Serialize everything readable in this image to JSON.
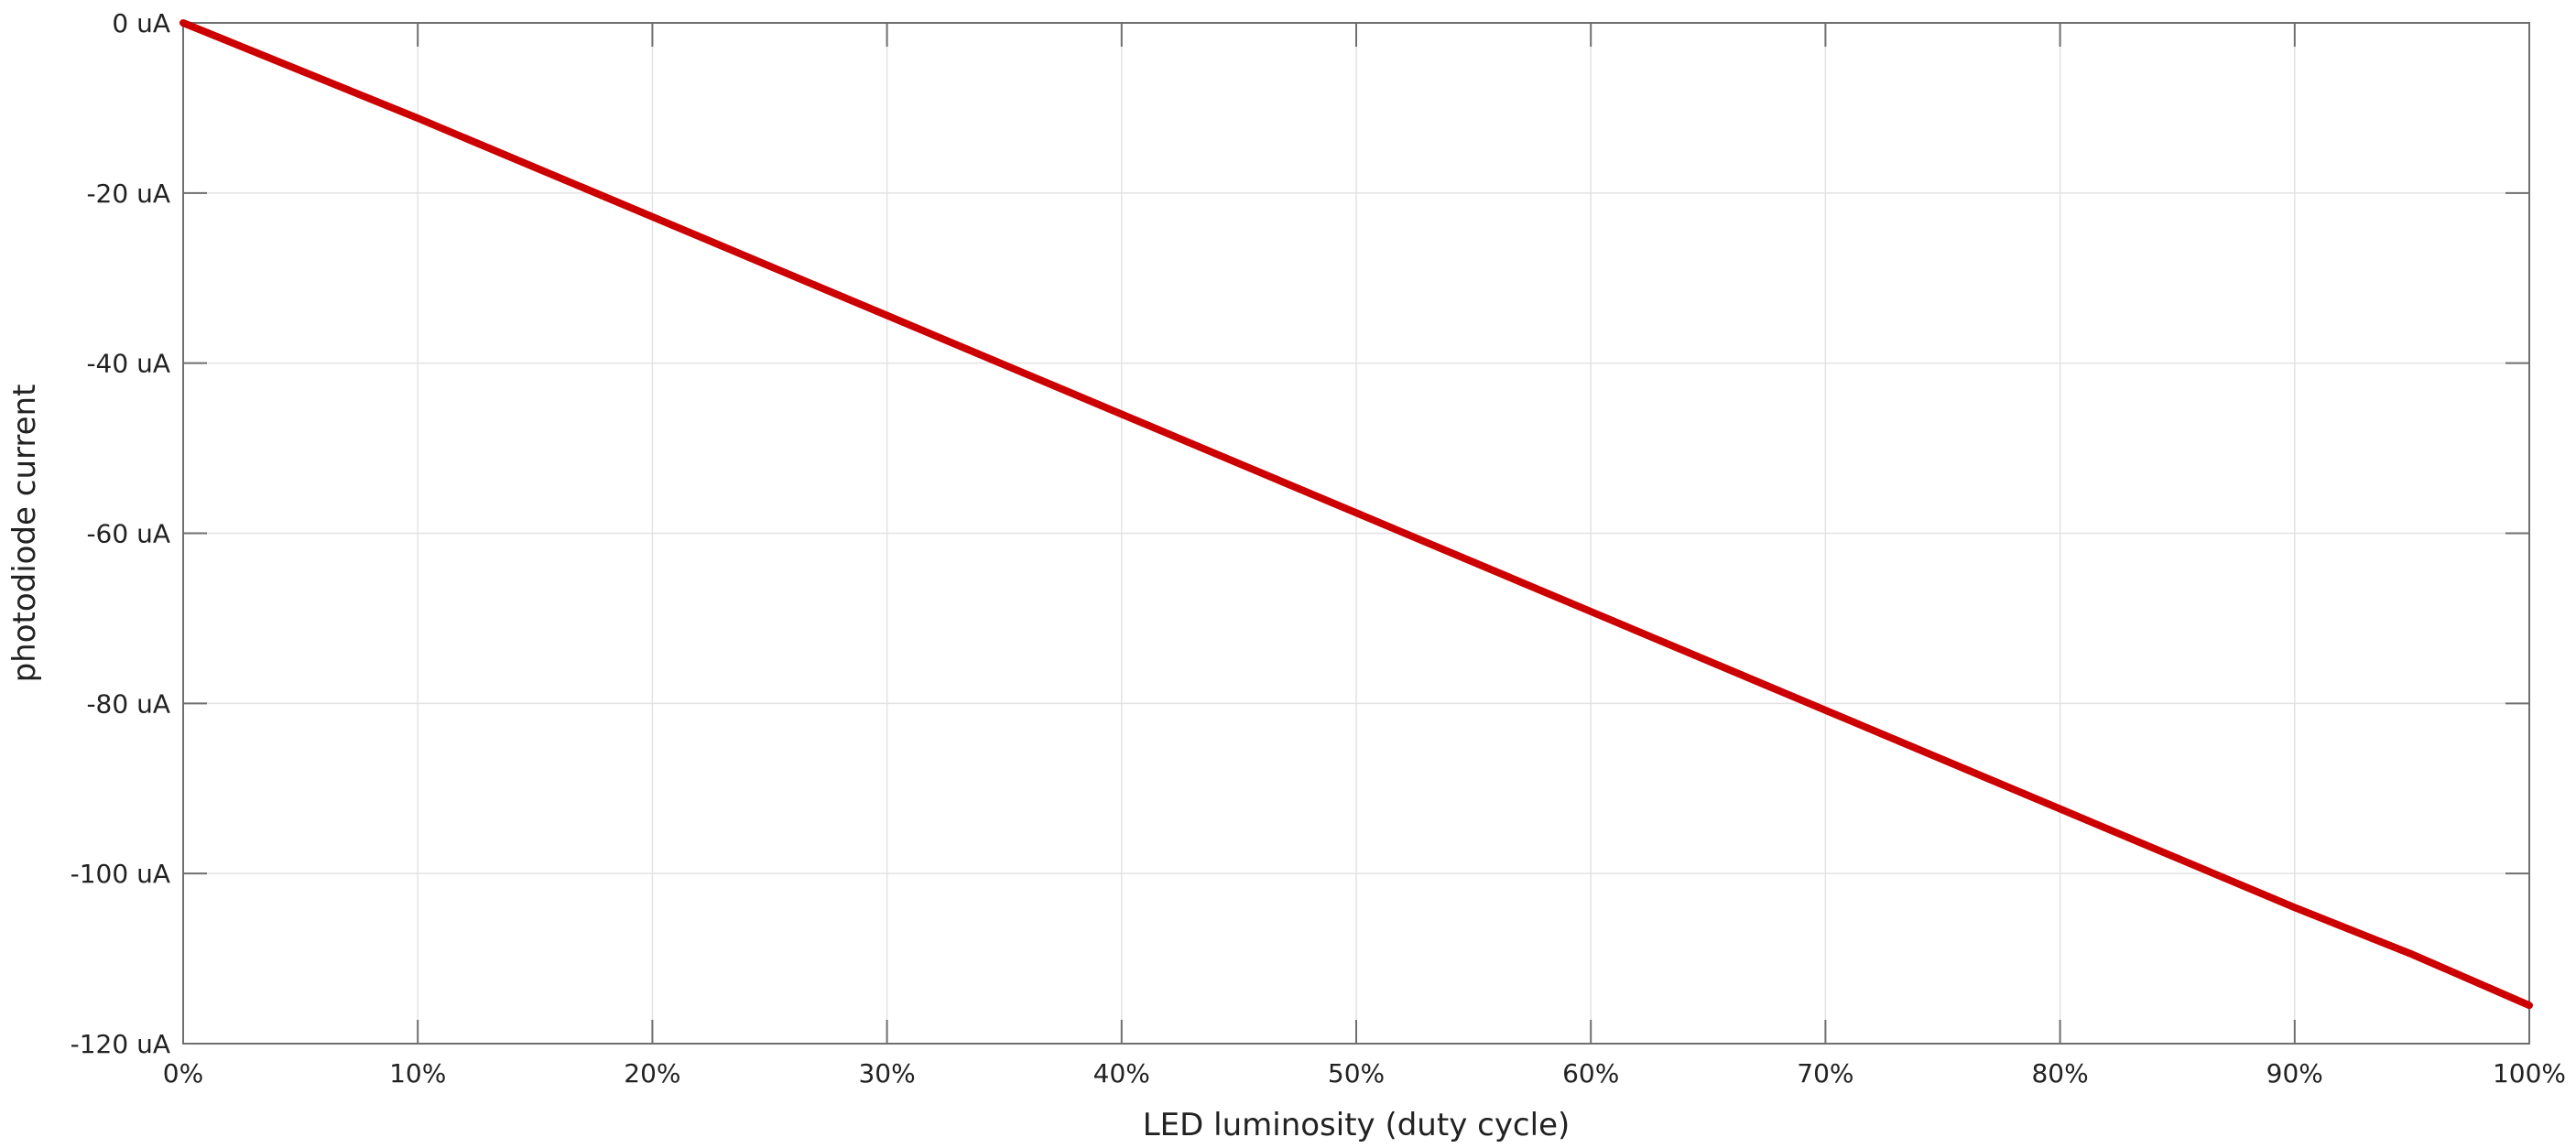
{
  "chart_data": {
    "type": "line",
    "title": "",
    "xlabel": "LED luminosity (duty cycle)",
    "ylabel": "photodiode current",
    "xlim": [
      0,
      100
    ],
    "ylim": [
      -120,
      0
    ],
    "x_ticks": [
      0,
      10,
      20,
      30,
      40,
      50,
      60,
      70,
      80,
      90,
      100
    ],
    "x_tick_labels": [
      "0%",
      "10%",
      "20%",
      "30%",
      "40%",
      "50%",
      "60%",
      "70%",
      "80%",
      "90%",
      "100%"
    ],
    "y_ticks": [
      0,
      -20,
      -40,
      -60,
      -80,
      -100,
      -120
    ],
    "y_tick_labels": [
      "0 uA",
      "-20 uA",
      "-40 uA",
      "-60 uA",
      "-80 uA",
      "-100 uA",
      "-120 uA"
    ],
    "grid": true,
    "series": [
      {
        "color": "#cc0000",
        "x": [
          0,
          10,
          20,
          30,
          40,
          50,
          60,
          70,
          80,
          90,
          95,
          100
        ],
        "y": [
          0,
          -11.2,
          -22.8,
          -34.4,
          -46.0,
          -57.6,
          -69.2,
          -80.8,
          -92.4,
          -104.0,
          -109.5,
          -115.5
        ]
      }
    ]
  }
}
